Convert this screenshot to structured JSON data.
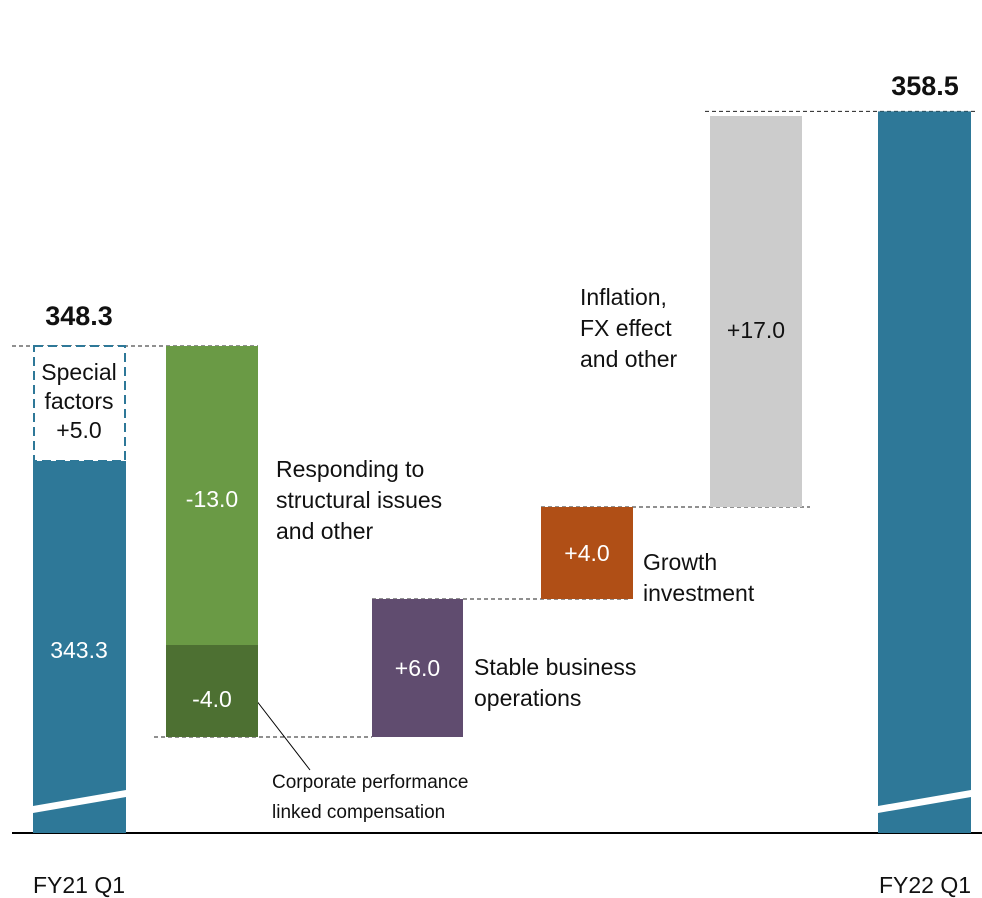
{
  "chart_data": {
    "type": "waterfall",
    "categories": [
      "FY21 Q1",
      "FY22 Q1"
    ],
    "start": {
      "label": "FY21 Q1",
      "total": "348.3",
      "base_value": 343.3,
      "base_label": "343.3",
      "special_factors": {
        "value": 5.0,
        "label_lines": [
          "Special",
          "factors",
          "+5.0"
        ]
      }
    },
    "steps": [
      {
        "value": -13.0,
        "value_label": "-13.0",
        "label_lines": [
          "Responding to",
          "structural issues",
          "and other"
        ],
        "color": "#6a9a45"
      },
      {
        "value": -4.0,
        "value_label": "-4.0",
        "label_lines": [
          "Corporate performance",
          "linked compensation"
        ],
        "color": "#4d7032"
      },
      {
        "value": 6.0,
        "value_label": "+6.0",
        "label_lines": [
          "Stable business",
          "operations"
        ],
        "color": "#604c6f"
      },
      {
        "value": 4.0,
        "value_label": "+4.0",
        "label_lines": [
          "Growth",
          "investment"
        ],
        "color": "#b04f16"
      },
      {
        "value": 17.0,
        "value_label": "+17.0",
        "label_lines": [
          "Inflation,",
          "FX effect",
          "and other"
        ],
        "color": "#cccccc"
      }
    ],
    "end": {
      "label": "FY22 Q1",
      "total": "358.5",
      "value": 358.5
    },
    "colors": {
      "total_bar": "#2e7898"
    },
    "axis_broken": true
  }
}
